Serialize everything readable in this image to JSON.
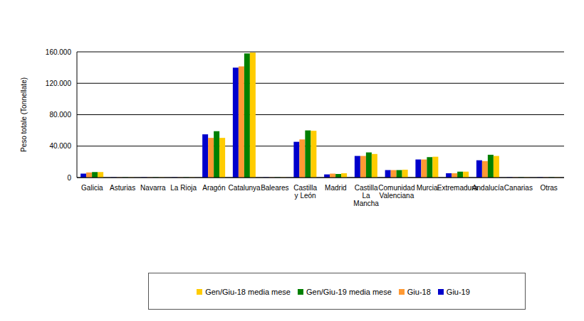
{
  "chart_data": {
    "type": "bar",
    "y_label": "Peso totale (Tonnellate)",
    "categories": [
      "Galicia",
      "Asturias",
      "Navarra",
      "La Rioja",
      "Aragón",
      "Catalunya",
      "Baleares",
      "Castilla y León",
      "Madrid",
      "Castilla La Mancha",
      "Comunidad Valenciana",
      "Murcia",
      "Extremadura",
      "Andalucía",
      "Canarias",
      "Otras"
    ],
    "series": [
      {
        "name": "Giu-19",
        "color": "#0000cc",
        "values": [
          5000,
          300,
          300,
          300,
          55000,
          140000,
          300,
          45500,
          4000,
          27500,
          9500,
          23000,
          5500,
          22000,
          300,
          300
        ]
      },
      {
        "name": "Giu-18",
        "color": "#ff9933",
        "values": [
          6500,
          300,
          300,
          300,
          50500,
          141500,
          300,
          48500,
          5000,
          27500,
          9500,
          23000,
          5500,
          21000,
          300,
          300
        ]
      },
      {
        "name": "Gen/Giu-19 media mese",
        "color": "#008000",
        "values": [
          7000,
          300,
          300,
          300,
          59000,
          158000,
          300,
          60000,
          4500,
          32000,
          9500,
          26000,
          7500,
          29000,
          300,
          300
        ]
      },
      {
        "name": "Gen/Giu-18 media mese",
        "color": "#ffcc00",
        "values": [
          7000,
          300,
          300,
          300,
          50500,
          159000,
          300,
          59500,
          5500,
          30000,
          10000,
          26500,
          7500,
          27500,
          300,
          300
        ]
      }
    ],
    "ylim": [
      0,
      160000
    ],
    "yticks": [
      0,
      {
        "value": 40000,
        "label": "40.000"
      },
      {
        "value": 80000,
        "label": "80.000"
      },
      {
        "value": 120000,
        "label": "120.000"
      },
      {
        "value": 160000,
        "label": "160.000"
      }
    ],
    "grid": true,
    "legend": "bottom"
  }
}
